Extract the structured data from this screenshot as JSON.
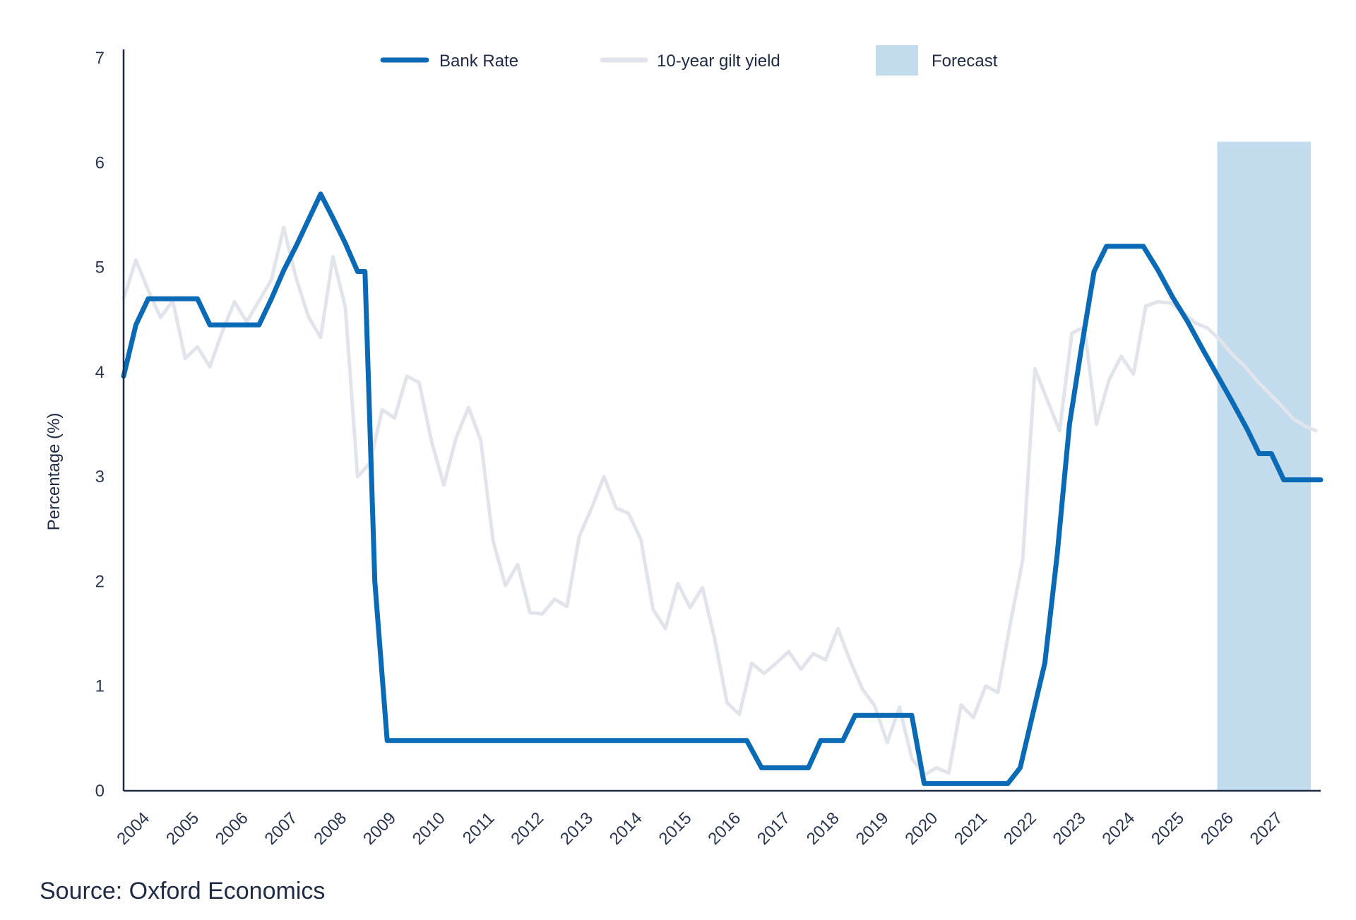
{
  "chart_data": {
    "type": "line",
    "title": "",
    "xlabel": "",
    "ylabel": "Percentage (%)",
    "ylim": [
      0,
      7
    ],
    "yticks": [
      0,
      1,
      2,
      3,
      4,
      5,
      6,
      7
    ],
    "xticks": [
      "2004",
      "2005",
      "2006",
      "2007",
      "2008",
      "2009",
      "2010",
      "2011",
      "2012",
      "2013",
      "2014",
      "2015",
      "2016",
      "2017",
      "2018",
      "2019",
      "2020",
      "2021",
      "2022",
      "2023",
      "2024",
      "2025",
      "2026",
      "2027"
    ],
    "xlim": [
      2004,
      2028.3
    ],
    "grid": false,
    "legend_position": "top",
    "forecast": {
      "label": "Forecast",
      "from": 2026.2,
      "to": 2028.1,
      "top": 6.2,
      "color": "#c2dcee"
    },
    "series": [
      {
        "name": "Bank Rate",
        "color": "#0a6ab6",
        "points": [
          [
            2004.0,
            3.96
          ],
          [
            2004.25,
            4.45
          ],
          [
            2004.5,
            4.7
          ],
          [
            2004.75,
            4.7
          ],
          [
            2005.0,
            4.7
          ],
          [
            2005.25,
            4.7
          ],
          [
            2005.5,
            4.7
          ],
          [
            2005.75,
            4.45
          ],
          [
            2006.0,
            4.45
          ],
          [
            2006.25,
            4.45
          ],
          [
            2006.5,
            4.45
          ],
          [
            2006.75,
            4.45
          ],
          [
            2007.0,
            4.7
          ],
          [
            2007.25,
            4.97
          ],
          [
            2007.5,
            5.2
          ],
          [
            2007.75,
            5.45
          ],
          [
            2008.0,
            5.7
          ],
          [
            2008.25,
            5.47
          ],
          [
            2008.5,
            5.23
          ],
          [
            2008.75,
            4.96
          ],
          [
            2008.9,
            4.96
          ],
          [
            2009.1,
            2.0
          ],
          [
            2009.35,
            0.48
          ],
          [
            2016.65,
            0.48
          ],
          [
            2016.95,
            0.22
          ],
          [
            2017.9,
            0.22
          ],
          [
            2018.15,
            0.48
          ],
          [
            2018.6,
            0.48
          ],
          [
            2018.85,
            0.72
          ],
          [
            2020.0,
            0.72
          ],
          [
            2020.25,
            0.07
          ],
          [
            2021.95,
            0.07
          ],
          [
            2022.2,
            0.22
          ],
          [
            2022.45,
            0.72
          ],
          [
            2022.7,
            1.22
          ],
          [
            2022.95,
            2.25
          ],
          [
            2023.2,
            3.5
          ],
          [
            2023.45,
            4.25
          ],
          [
            2023.7,
            4.96
          ],
          [
            2023.95,
            5.2
          ],
          [
            2024.7,
            5.2
          ],
          [
            2025.0,
            4.97
          ],
          [
            2025.3,
            4.71
          ],
          [
            2025.6,
            4.48
          ],
          [
            2025.9,
            4.22
          ],
          [
            2026.2,
            3.97
          ],
          [
            2026.5,
            3.72
          ],
          [
            2026.8,
            3.46
          ],
          [
            2027.05,
            3.22
          ],
          [
            2027.3,
            3.22
          ],
          [
            2027.55,
            2.97
          ],
          [
            2028.3,
            2.97
          ]
        ]
      },
      {
        "name": "10-year gilt yield",
        "color": "#e2e4ec",
        "points": [
          [
            2004.0,
            4.7
          ],
          [
            2004.25,
            5.07
          ],
          [
            2004.5,
            4.78
          ],
          [
            2004.75,
            4.52
          ],
          [
            2005.0,
            4.68
          ],
          [
            2005.25,
            4.13
          ],
          [
            2005.5,
            4.24
          ],
          [
            2005.75,
            4.05
          ],
          [
            2006.0,
            4.38
          ],
          [
            2006.25,
            4.67
          ],
          [
            2006.5,
            4.48
          ],
          [
            2006.75,
            4.68
          ],
          [
            2007.0,
            4.88
          ],
          [
            2007.25,
            5.38
          ],
          [
            2007.5,
            4.9
          ],
          [
            2007.75,
            4.53
          ],
          [
            2008.0,
            4.33
          ],
          [
            2008.25,
            5.1
          ],
          [
            2008.5,
            4.62
          ],
          [
            2008.75,
            3.0
          ],
          [
            2009.0,
            3.13
          ],
          [
            2009.25,
            3.64
          ],
          [
            2009.5,
            3.56
          ],
          [
            2009.75,
            3.96
          ],
          [
            2010.0,
            3.9
          ],
          [
            2010.25,
            3.34
          ],
          [
            2010.5,
            2.92
          ],
          [
            2010.75,
            3.37
          ],
          [
            2011.0,
            3.66
          ],
          [
            2011.25,
            3.35
          ],
          [
            2011.5,
            2.39
          ],
          [
            2011.75,
            1.96
          ],
          [
            2012.0,
            2.16
          ],
          [
            2012.25,
            1.7
          ],
          [
            2012.5,
            1.69
          ],
          [
            2012.75,
            1.83
          ],
          [
            2013.0,
            1.76
          ],
          [
            2013.25,
            2.43
          ],
          [
            2013.5,
            2.7
          ],
          [
            2013.75,
            3.0
          ],
          [
            2014.0,
            2.7
          ],
          [
            2014.25,
            2.65
          ],
          [
            2014.5,
            2.4
          ],
          [
            2014.75,
            1.73
          ],
          [
            2015.0,
            1.55
          ],
          [
            2015.25,
            1.98
          ],
          [
            2015.5,
            1.75
          ],
          [
            2015.75,
            1.94
          ],
          [
            2016.0,
            1.45
          ],
          [
            2016.25,
            0.84
          ],
          [
            2016.5,
            0.73
          ],
          [
            2016.75,
            1.22
          ],
          [
            2017.0,
            1.12
          ],
          [
            2017.25,
            1.22
          ],
          [
            2017.5,
            1.33
          ],
          [
            2017.75,
            1.16
          ],
          [
            2018.0,
            1.31
          ],
          [
            2018.25,
            1.25
          ],
          [
            2018.5,
            1.55
          ],
          [
            2018.75,
            1.24
          ],
          [
            2019.0,
            0.97
          ],
          [
            2019.25,
            0.81
          ],
          [
            2019.5,
            0.46
          ],
          [
            2019.75,
            0.8
          ],
          [
            2020.0,
            0.31
          ],
          [
            2020.25,
            0.15
          ],
          [
            2020.5,
            0.22
          ],
          [
            2020.75,
            0.17
          ],
          [
            2021.0,
            0.82
          ],
          [
            2021.25,
            0.7
          ],
          [
            2021.5,
            1.0
          ],
          [
            2021.75,
            0.94
          ],
          [
            2022.0,
            1.6
          ],
          [
            2022.25,
            2.2
          ],
          [
            2022.5,
            4.03
          ],
          [
            2022.75,
            3.73
          ],
          [
            2023.0,
            3.44
          ],
          [
            2023.25,
            4.37
          ],
          [
            2023.5,
            4.43
          ],
          [
            2023.75,
            3.5
          ],
          [
            2024.0,
            3.92
          ],
          [
            2024.25,
            4.15
          ],
          [
            2024.5,
            3.98
          ],
          [
            2024.75,
            4.63
          ],
          [
            2025.0,
            4.67
          ],
          [
            2025.25,
            4.66
          ],
          [
            2025.5,
            4.57
          ],
          [
            2025.75,
            4.47
          ],
          [
            2026.0,
            4.42
          ],
          [
            2026.25,
            4.31
          ],
          [
            2026.5,
            4.17
          ],
          [
            2026.75,
            4.06
          ],
          [
            2027.0,
            3.92
          ],
          [
            2027.25,
            3.8
          ],
          [
            2027.5,
            3.68
          ],
          [
            2027.75,
            3.55
          ],
          [
            2028.0,
            3.48
          ],
          [
            2028.2,
            3.44
          ]
        ]
      }
    ]
  },
  "legend": {
    "bank_rate": "Bank Rate",
    "gilt_yield": "10-year gilt yield",
    "forecast": "Forecast"
  },
  "source": "Source: Oxford Economics"
}
